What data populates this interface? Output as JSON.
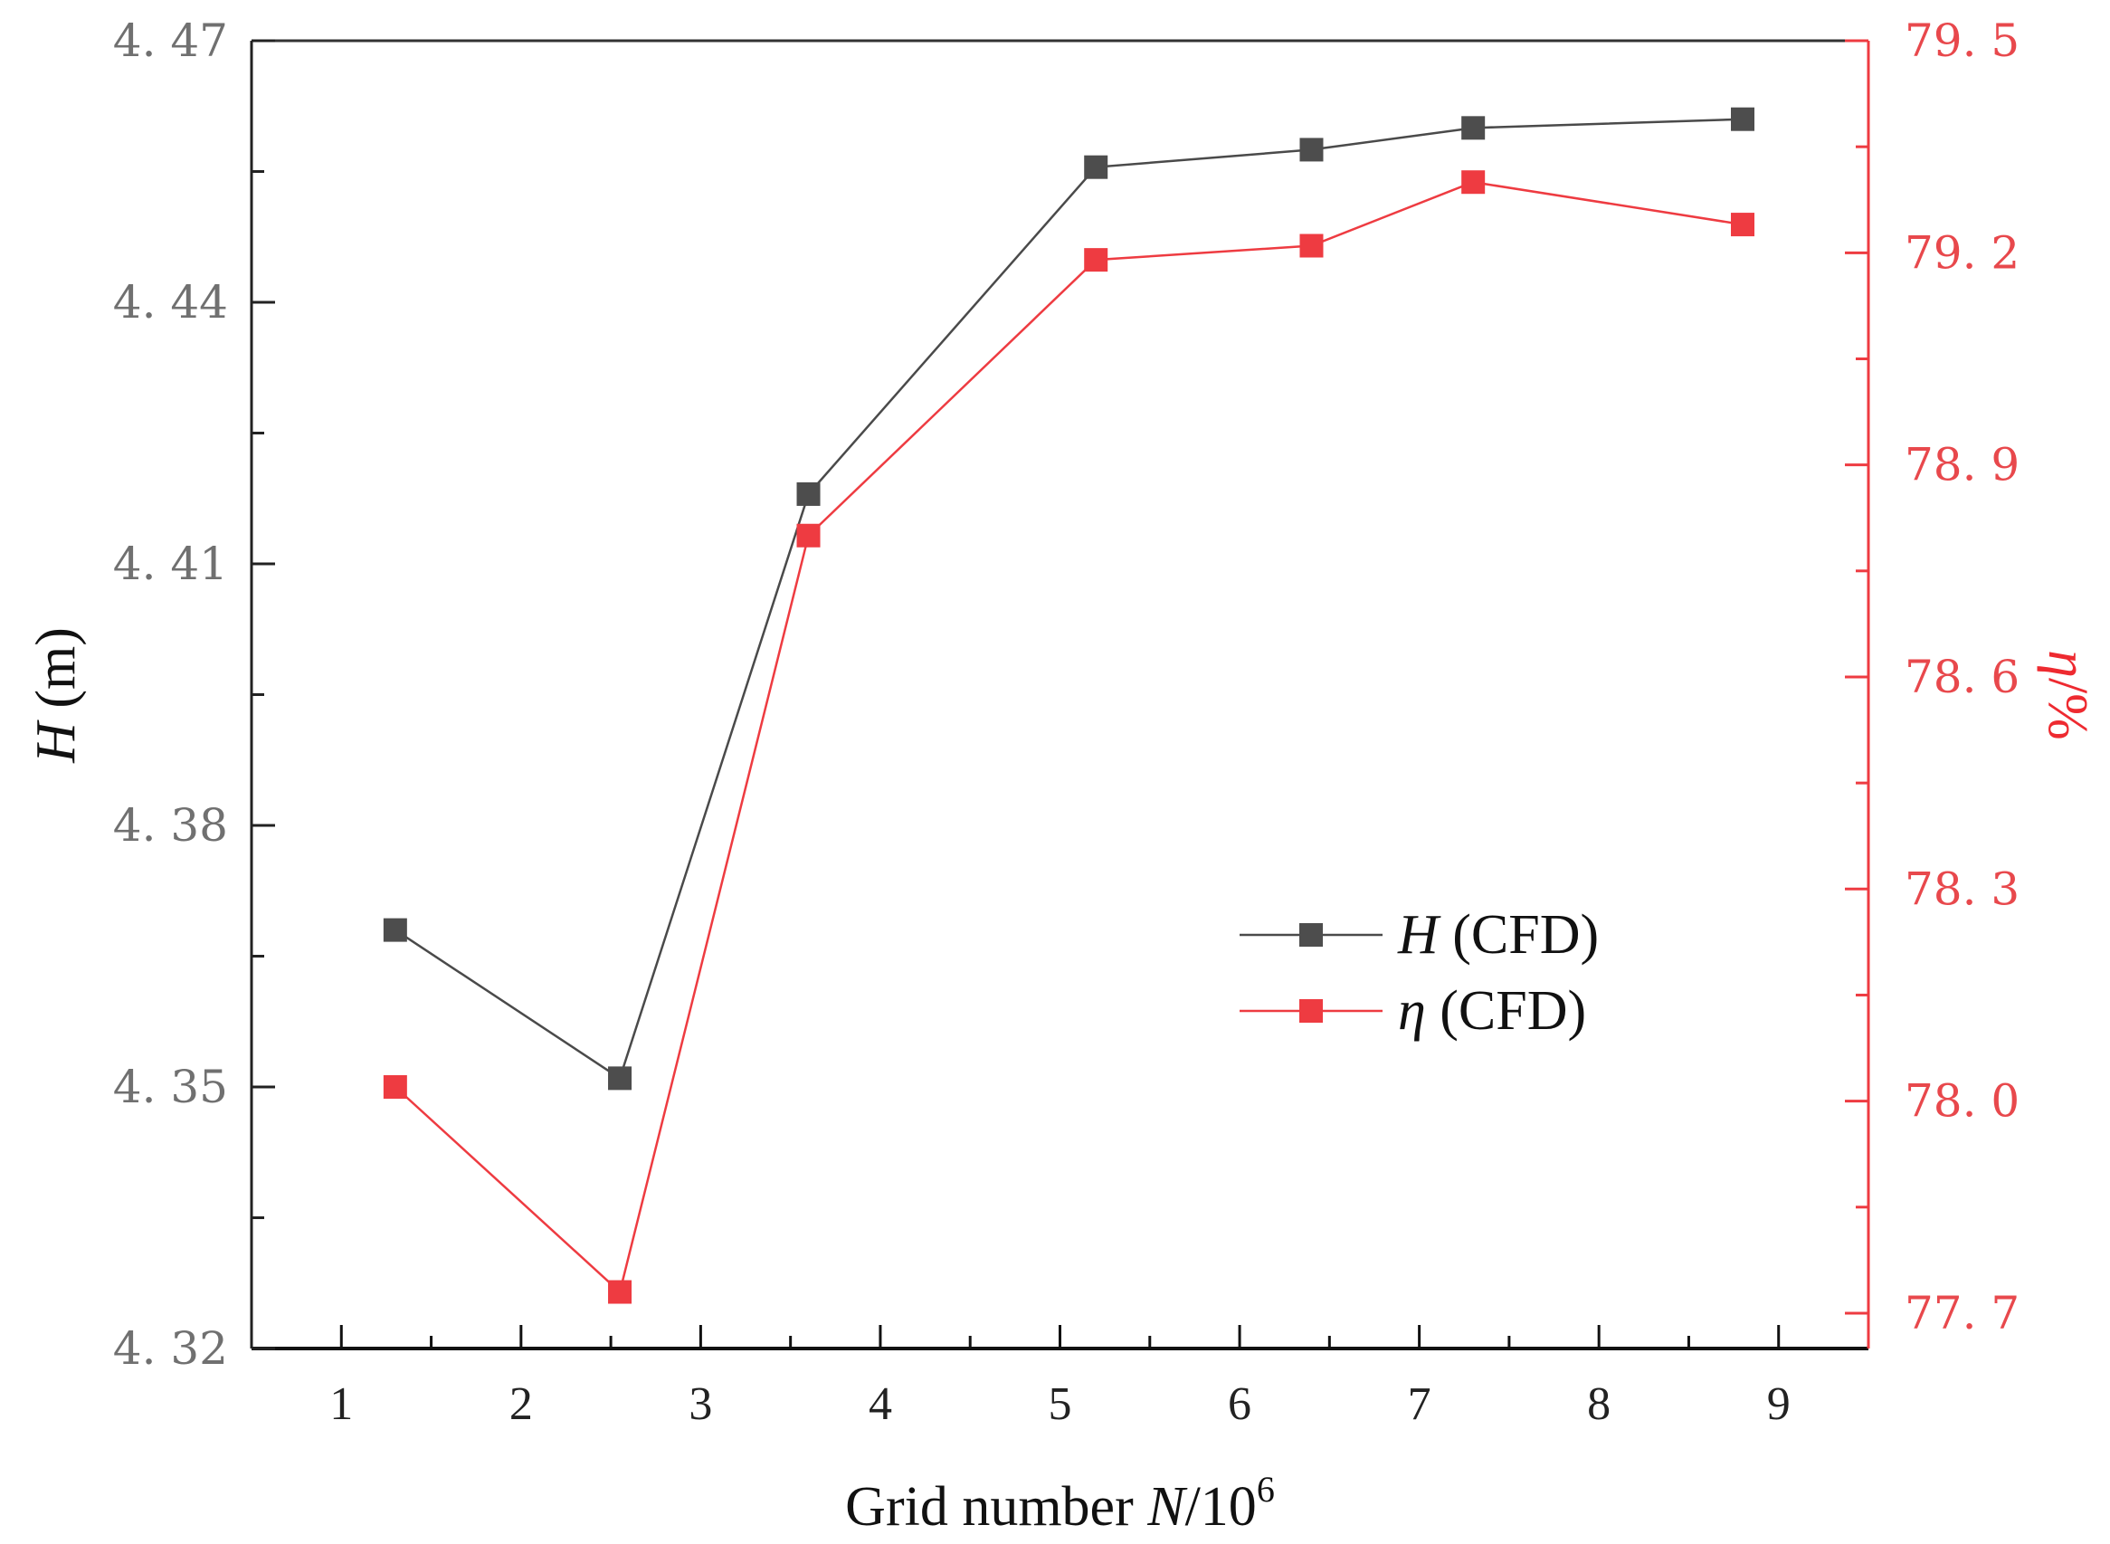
{
  "chart_data": {
    "type": "line",
    "x": [
      1.3,
      2.55,
      3.6,
      5.2,
      6.4,
      7.3,
      8.8
    ],
    "series": [
      {
        "name": "H (CFD)",
        "name_symbol": "H",
        "name_suffix": " (CFD)",
        "axis": "left",
        "color": "#4a4a4a",
        "marker_color": "#4d4d4d",
        "values": [
          4.368,
          4.351,
          4.418,
          4.4555,
          4.4575,
          4.46,
          4.461
        ]
      },
      {
        "name": "η (CFD)",
        "name_symbol": "η",
        "name_suffix": " (CFD)",
        "axis": "right",
        "color": "#ee3b41",
        "marker_color": "#ee3b41",
        "values": [
          78.02,
          77.73,
          78.8,
          79.19,
          79.21,
          79.3,
          79.24
        ]
      }
    ],
    "xlabel_prefix": "Grid number ",
    "xlabel_symbol": "N",
    "xlabel_unit": "/10",
    "xlabel_exponent": "6",
    "ylabel_symbol": "H",
    "ylabel_unit": " (m)",
    "y2label_symbol": "η",
    "y2label_unit": "/%",
    "xlim": [
      0.5,
      9.5
    ],
    "ylim": [
      4.32,
      4.47
    ],
    "y2lim": [
      77.65,
      79.5
    ],
    "xticks": [
      1,
      2,
      3,
      4,
      5,
      6,
      7,
      8,
      9
    ],
    "xtick_labels": [
      "1",
      "2",
      "3",
      "4",
      "5",
      "6",
      "7",
      "8",
      "9"
    ],
    "yticks": [
      4.32,
      4.35,
      4.38,
      4.41,
      4.44,
      4.47
    ],
    "ytick_labels": [
      "4. 32",
      "4. 35",
      "4. 38",
      "4. 41",
      "4. 44",
      "4. 47"
    ],
    "y2ticks": [
      77.7,
      78.0,
      78.3,
      78.6,
      78.9,
      79.2,
      79.5
    ],
    "y2tick_labels": [
      "77. 7",
      "78. 0",
      "78. 3",
      "78. 6",
      "78. 9",
      "79. 2",
      "79. 5"
    ],
    "legend_position": "center-right",
    "grid": false,
    "left_axis_color": "#222222",
    "right_axis_color": "#ee3b41"
  }
}
